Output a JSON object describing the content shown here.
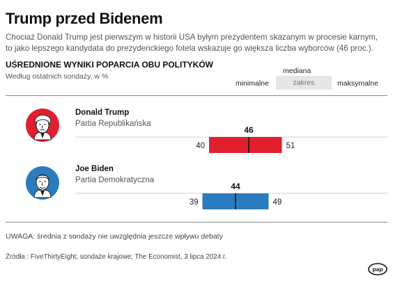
{
  "title": "Trump przed Bidenem",
  "lead": "Chociaż Donald Trump jest pierwszym w historii USA byłym prezydentem skazanym w procesie karnym, to jako lepszego kandydata do prezydenckiego fotela wskazuje go większa liczba wyborców (46 proc.).",
  "subheading": "UŚREDNIONE WYNIKI POPARCIA OBU POLITYKÓW",
  "subsubheading": "Według ostatnich sondaży, w %",
  "legend": {
    "median": "mediana",
    "min": "minimalne",
    "range": "zakres",
    "max": "maksymalne"
  },
  "chart_data": {
    "type": "bar",
    "unit": "%",
    "series": [
      {
        "name": "Donald Trump",
        "party": "Partia Republikańska",
        "min": 40,
        "median": 46,
        "max": 51,
        "color": "#e0202e",
        "icon": "donald-trump-portrait"
      },
      {
        "name": "Joe Biden",
        "party": "Partia Demokratyczna",
        "min": 39,
        "median": 44,
        "max": 49,
        "color": "#2b7bbf",
        "icon": "joe-biden-portrait"
      }
    ]
  },
  "note": "UWAGA: średnia z sondaży nie uwzględnia jeszcze wpływu debaty",
  "source": "Źródła : FiveThirtyEight; sondaże krajowe; The Economist, 3 lipca 2024 r.",
  "logo": "pap"
}
